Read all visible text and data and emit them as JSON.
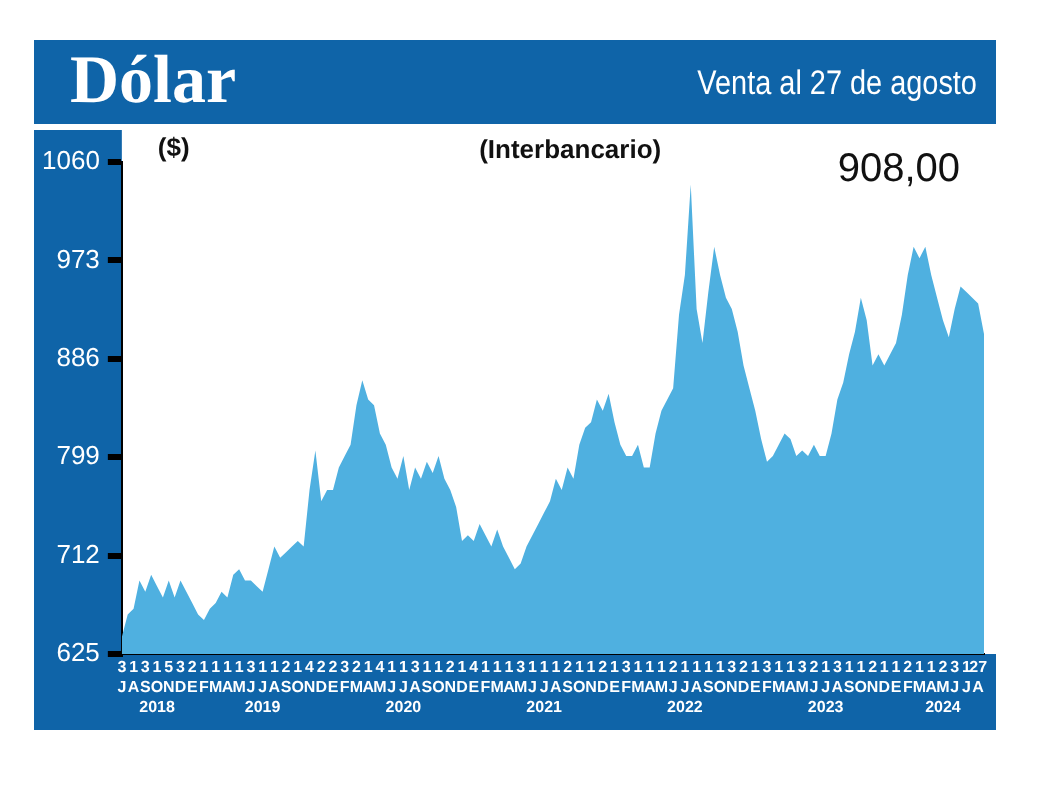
{
  "chart_data": {
    "type": "area",
    "title": "Dólar",
    "subtitle": "Venta al 27 de agosto",
    "ylabel": "($)",
    "annotations": [
      "(Interbancario)",
      "908,00"
    ],
    "categories": [
      "3\nJ",
      null,
      "1\nA",
      null,
      "3\nS",
      null,
      "1\nO\n2018",
      null,
      "5\nN",
      null,
      "3\nD",
      null,
      "2\nE",
      null,
      "1\nF",
      null,
      "1\nM",
      null,
      "1\nA",
      null,
      "1\nM",
      null,
      "3\nJ",
      null,
      "1\nJ\n2019",
      null,
      "1\nA",
      null,
      "2\nS",
      null,
      "1\nO",
      null,
      "4\nN",
      null,
      "2\nD",
      null,
      "2\nE",
      null,
      "3\nF",
      null,
      "2\nM",
      null,
      "1\nA",
      null,
      "4\nM",
      null,
      "1\nJ",
      null,
      "1\nJ\n2020",
      null,
      "3\nA",
      null,
      "1\nS",
      null,
      "1\nO",
      null,
      "2\nN",
      null,
      "1\nD",
      null,
      "4\nE",
      null,
      "1\nF",
      null,
      "1\nM",
      null,
      "1\nA",
      null,
      "3\nM",
      null,
      "1\nJ",
      null,
      "1\nJ\n2021",
      null,
      "1\nA",
      null,
      "2\nS",
      null,
      "1\nO",
      null,
      "1\nN",
      null,
      "2\nD",
      null,
      "1\nE",
      null,
      "3\nF",
      null,
      "1\nM",
      null,
      "1\nA",
      null,
      "1\nM",
      null,
      "2\nJ",
      null,
      "1\nJ\n2022",
      null,
      "1\nA",
      null,
      "1\nS",
      null,
      "1\nO",
      null,
      "3\nN",
      null,
      "2\nD",
      null,
      "1\nE",
      null,
      "3\nF",
      null,
      "1\nM",
      null,
      "1\nA",
      null,
      "3\nM",
      null,
      "2\nJ",
      null,
      "1\nJ\n2023",
      null,
      "3\nA",
      null,
      "1\nS",
      null,
      "1\nO",
      null,
      "2\nN",
      null,
      "1\nD",
      null,
      "1\nE",
      null,
      "2\nF",
      null,
      "1\nM",
      null,
      "1\nA",
      null,
      "2\nM\n2024",
      null,
      "3\nJ",
      null,
      "1\nJ",
      null,
      "27\nA",
      null
    ],
    "values": [
      640,
      660,
      665,
      690,
      680,
      695,
      685,
      675,
      690,
      675,
      690,
      680,
      670,
      660,
      655,
      665,
      670,
      680,
      675,
      695,
      700,
      690,
      690,
      685,
      680,
      700,
      720,
      710,
      715,
      720,
      725,
      720,
      770,
      805,
      760,
      770,
      770,
      790,
      800,
      810,
      845,
      867,
      850,
      845,
      820,
      810,
      790,
      780,
      800,
      770,
      790,
      780,
      795,
      785,
      800,
      780,
      770,
      755,
      725,
      730,
      725,
      740,
      730,
      720,
      735,
      720,
      710,
      700,
      705,
      720,
      730,
      740,
      750,
      760,
      780,
      770,
      790,
      780,
      810,
      825,
      830,
      850,
      840,
      855,
      830,
      810,
      800,
      800,
      810,
      790,
      790,
      820,
      840,
      850,
      860,
      925,
      960,
      1040,
      930,
      900,
      945,
      985,
      960,
      940,
      930,
      910,
      880,
      860,
      840,
      815,
      795,
      800,
      810,
      820,
      815,
      800,
      805,
      800,
      810,
      800,
      800,
      820,
      850,
      865,
      890,
      910,
      940,
      920,
      880,
      890,
      880,
      890,
      900,
      925,
      960,
      985,
      975,
      985,
      960,
      940,
      920,
      905,
      930,
      950,
      945,
      940,
      935,
      908
    ],
    "color": "#4fb0e0",
    "ylim": [
      625,
      1060
    ],
    "yticks": [
      625,
      712,
      799,
      886,
      973,
      1060
    ]
  }
}
